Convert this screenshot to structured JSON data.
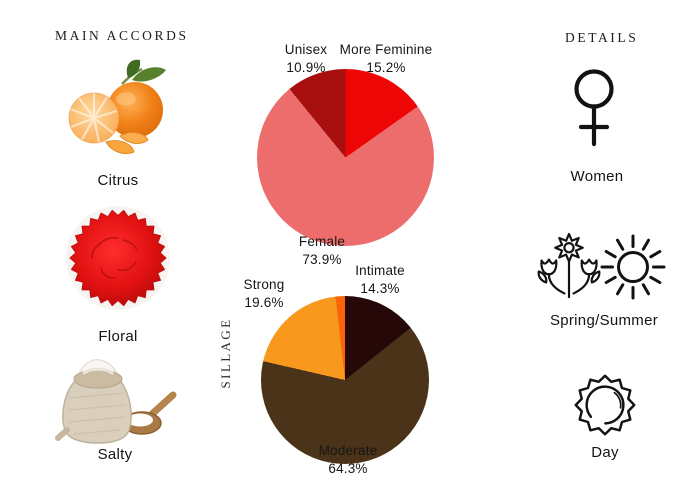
{
  "accords": {
    "title": "MAIN ACCORDS",
    "items": [
      {
        "label": "Citrus",
        "icon": "mandarin-oranges-photo"
      },
      {
        "label": "Floral",
        "icon": "red-carnation-photo"
      },
      {
        "label": "Salty",
        "icon": "salt-bag-photo"
      }
    ]
  },
  "details": {
    "title": "DETAILS",
    "items": [
      {
        "label": "Women",
        "icon": "female-gender-icon"
      },
      {
        "label": "Spring/Summer",
        "icon": "flowers-and-sun-icon"
      },
      {
        "label": "Day",
        "icon": "day-sun-icon"
      }
    ]
  },
  "chart_data": [
    {
      "type": "pie",
      "name": "gender-votes",
      "start_angle_deg": 0,
      "direction": "clockwise",
      "legend_position": "labels-around-pie",
      "slices": [
        {
          "label": "More Feminine",
          "pct_text": "15.2%",
          "value": 15.2,
          "color": "#ee0505"
        },
        {
          "label": "Female",
          "pct_text": "73.9%",
          "value": 73.9,
          "color": "#ed6c6c"
        },
        {
          "label": "Unisex",
          "pct_text": "10.9%",
          "value": 10.9,
          "color": "#a80f0f"
        }
      ]
    },
    {
      "type": "pie",
      "name": "sillage-votes",
      "axis_title": "SILLAGE",
      "start_angle_deg": 0,
      "direction": "clockwise",
      "legend_position": "labels-around-pie",
      "slices": [
        {
          "label": "Intimate",
          "pct_text": "14.3%",
          "value": 14.3,
          "color": "#260808"
        },
        {
          "label": "Moderate",
          "pct_text": "64.3%",
          "value": 64.3,
          "color": "#4a3318"
        },
        {
          "label": "Strong",
          "pct_text": "19.6%",
          "value": 19.6,
          "color": "#f8981c"
        },
        {
          "label": "",
          "pct_text": "",
          "value": 1.8,
          "color": "#fb6409"
        }
      ]
    }
  ]
}
